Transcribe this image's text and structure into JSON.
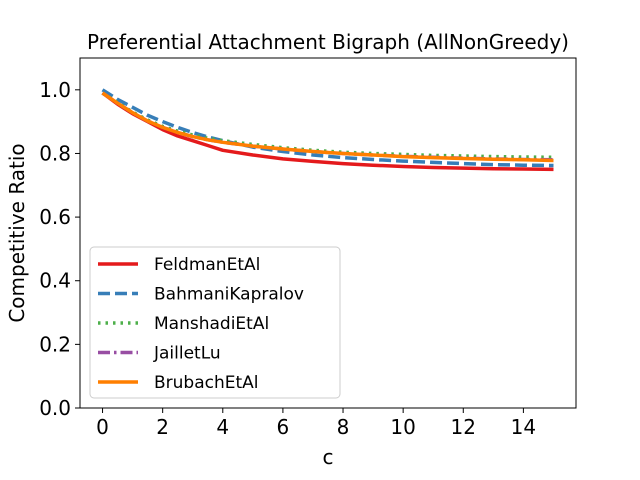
{
  "chart_data": {
    "type": "line",
    "title": "Preferential Attachment Bigraph (AllNonGreedy)",
    "xlabel": "c",
    "ylabel": "Competitive Ratio",
    "xlim": [
      -0.75,
      15.75
    ],
    "ylim": [
      0.0,
      1.1
    ],
    "xticks": [
      0,
      2,
      4,
      6,
      8,
      10,
      12,
      14
    ],
    "yticks": [
      0.0,
      0.2,
      0.4,
      0.6,
      0.8,
      1.0
    ],
    "xtick_labels": [
      "0",
      "2",
      "4",
      "6",
      "8",
      "10",
      "12",
      "14"
    ],
    "ytick_labels": [
      "0.0",
      "0.2",
      "0.4",
      "0.6",
      "0.8",
      "1.0"
    ],
    "grid": false,
    "legend_position": "lower-left",
    "x": [
      0,
      0.5,
      1,
      1.5,
      2,
      2.5,
      3,
      3.5,
      4,
      5,
      6,
      7,
      8,
      9,
      10,
      11,
      12,
      13,
      14,
      15
    ],
    "series": [
      {
        "name": "FeldmanEtAl",
        "color": "#e41a1c",
        "style": "solid",
        "values": [
          0.99,
          0.955,
          0.925,
          0.9,
          0.875,
          0.855,
          0.84,
          0.825,
          0.81,
          0.795,
          0.783,
          0.775,
          0.768,
          0.763,
          0.759,
          0.756,
          0.754,
          0.752,
          0.751,
          0.75
        ]
      },
      {
        "name": "BahmaniKapralov",
        "color": "#377eb8",
        "style": "dashed",
        "values": [
          1.0,
          0.97,
          0.945,
          0.92,
          0.9,
          0.882,
          0.866,
          0.852,
          0.84,
          0.82,
          0.806,
          0.795,
          0.787,
          0.781,
          0.776,
          0.772,
          0.768,
          0.765,
          0.763,
          0.762
        ]
      },
      {
        "name": "ManshadiEtAl",
        "color": "#4daf4a",
        "style": "dotted",
        "values": [
          0.99,
          0.96,
          0.93,
          0.905,
          0.885,
          0.87,
          0.858,
          0.848,
          0.84,
          0.828,
          0.818,
          0.81,
          0.804,
          0.8,
          0.797,
          0.794,
          0.792,
          0.79,
          0.789,
          0.788
        ]
      },
      {
        "name": "JailletLu",
        "color": "#984ea3",
        "style": "dashdot",
        "values": [
          0.99,
          0.958,
          0.928,
          0.902,
          0.882,
          0.866,
          0.853,
          0.843,
          0.835,
          0.823,
          0.814,
          0.806,
          0.8,
          0.795,
          0.791,
          0.788,
          0.785,
          0.783,
          0.781,
          0.78
        ]
      },
      {
        "name": "BrubachEtAl",
        "color": "#ff7f00",
        "style": "solid",
        "values": [
          0.99,
          0.958,
          0.928,
          0.902,
          0.882,
          0.866,
          0.853,
          0.843,
          0.835,
          0.823,
          0.814,
          0.806,
          0.8,
          0.795,
          0.79,
          0.787,
          0.784,
          0.782,
          0.78,
          0.778
        ]
      }
    ]
  }
}
